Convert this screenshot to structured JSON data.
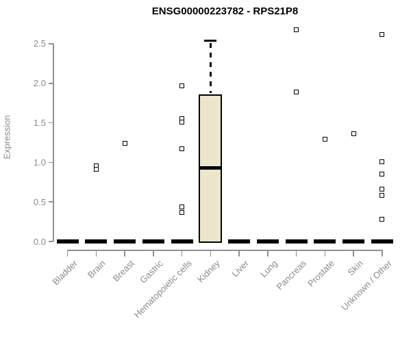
{
  "chart_data": {
    "type": "boxplot",
    "title": "ENSG00000223782 - RPS21P8",
    "xlabel": "",
    "ylabel": "Expression",
    "ylim": [
      0.0,
      2.5
    ],
    "yticks": [
      0.0,
      0.5,
      1.0,
      1.5,
      2.0,
      2.5
    ],
    "ytick_labels": [
      "0.0",
      "0.5",
      "1.0",
      "1.5",
      "2.0",
      "2.5"
    ],
    "grid": "off",
    "legend": "none",
    "categories": [
      "Bladder",
      "Brain",
      "Breast",
      "Gastric",
      "Hematopoietic cells",
      "Kidney",
      "Liver",
      "Lung",
      "Pancreas",
      "Prostate",
      "Skin",
      "Unknown / Other"
    ],
    "boxes": [
      {
        "category": "Bladder",
        "q1": 0,
        "median": 0,
        "q3": 0,
        "whisker_low": 0,
        "whisker_high": 0,
        "outliers": []
      },
      {
        "category": "Brain",
        "q1": 0,
        "median": 0,
        "q3": 0,
        "whisker_low": 0,
        "whisker_high": 0,
        "outliers": [
          0.96,
          0.91
        ]
      },
      {
        "category": "Breast",
        "q1": 0,
        "median": 0,
        "q3": 0,
        "whisker_low": 0,
        "whisker_high": 0,
        "outliers": [
          1.24
        ]
      },
      {
        "category": "Gastric",
        "q1": 0,
        "median": 0,
        "q3": 0,
        "whisker_low": 0,
        "whisker_high": 0,
        "outliers": []
      },
      {
        "category": "Hematopoietic cells",
        "q1": 0,
        "median": 0,
        "q3": 0,
        "whisker_low": 0,
        "whisker_high": 0,
        "outliers": [
          1.97,
          1.55,
          1.51,
          1.17,
          0.44,
          0.37
        ]
      },
      {
        "category": "Kidney",
        "q1": 0,
        "median": 0.93,
        "q3": 1.86,
        "whisker_low": 0,
        "whisker_high": 2.54,
        "outliers": []
      },
      {
        "category": "Liver",
        "q1": 0,
        "median": 0,
        "q3": 0,
        "whisker_low": 0,
        "whisker_high": 0,
        "outliers": []
      },
      {
        "category": "Lung",
        "q1": 0,
        "median": 0,
        "q3": 0,
        "whisker_low": 0,
        "whisker_high": 0,
        "outliers": []
      },
      {
        "category": "Pancreas",
        "q1": 0,
        "median": 0,
        "q3": 0,
        "whisker_low": 0,
        "whisker_high": 0,
        "outliers": [
          2.68,
          1.89
        ]
      },
      {
        "category": "Prostate",
        "q1": 0,
        "median": 0,
        "q3": 0,
        "whisker_low": 0,
        "whisker_high": 0,
        "outliers": [
          1.29
        ]
      },
      {
        "category": "Skin",
        "q1": 0,
        "median": 0,
        "q3": 0,
        "whisker_low": 0,
        "whisker_high": 0,
        "outliers": [
          1.36
        ]
      },
      {
        "category": "Unknown / Other",
        "q1": 0,
        "median": 0,
        "q3": 0,
        "whisker_low": 0,
        "whisker_high": 0,
        "outliers": [
          2.62,
          1.01,
          0.85,
          0.66,
          0.58,
          0.28
        ]
      }
    ],
    "colors": {
      "box_fill": "#ece6cd",
      "box_border": "#000000",
      "median": "#000000",
      "outlier_fill": "#ffffff",
      "outlier_border": "#000000",
      "axis": "#909090",
      "tick_text": "#8a8a8a",
      "title_text": "#000000"
    }
  }
}
